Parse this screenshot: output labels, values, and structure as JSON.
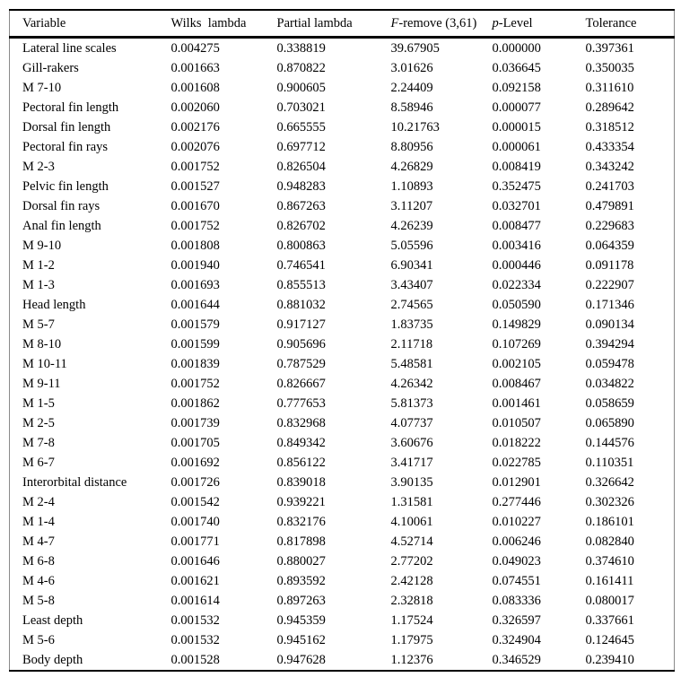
{
  "table": {
    "headers": [
      {
        "key": "variable",
        "segments": [
          {
            "text": "Variable",
            "italic": false
          }
        ]
      },
      {
        "key": "wilks-lambda",
        "segments": [
          {
            "text": "Wilks  lambda",
            "italic": false
          }
        ]
      },
      {
        "key": "partial-lambda",
        "segments": [
          {
            "text": "Partial lambda",
            "italic": false
          }
        ]
      },
      {
        "key": "f-remove",
        "segments": [
          {
            "text": "F",
            "italic": true
          },
          {
            "text": "-remove (3,61)",
            "italic": false
          }
        ]
      },
      {
        "key": "p-level",
        "segments": [
          {
            "text": "p",
            "italic": true
          },
          {
            "text": "-Level",
            "italic": false
          }
        ]
      },
      {
        "key": "tolerance",
        "segments": [
          {
            "text": "Tolerance",
            "italic": false
          }
        ]
      }
    ],
    "rows": [
      [
        "Lateral line scales",
        "0.004275",
        "0.338819",
        "39.67905",
        "0.000000",
        "0.397361"
      ],
      [
        "Gill-rakers",
        "0.001663",
        "0.870822",
        "3.01626",
        "0.036645",
        "0.350035"
      ],
      [
        "M 7-10",
        "0.001608",
        "0.900605",
        "2.24409",
        "0.092158",
        "0.311610"
      ],
      [
        "Pectoral fin length",
        "0.002060",
        "0.703021",
        "8.58946",
        "0.000077",
        "0.289642"
      ],
      [
        "Dorsal fin length",
        "0.002176",
        "0.665555",
        "10.21763",
        "0.000015",
        "0.318512"
      ],
      [
        "Pectoral fin rays",
        "0.002076",
        "0.697712",
        "8.80956",
        "0.000061",
        "0.433354"
      ],
      [
        "M 2-3",
        "0.001752",
        "0.826504",
        "4.26829",
        "0.008419",
        "0.343242"
      ],
      [
        "Pelvic fin length",
        "0.001527",
        "0.948283",
        "1.10893",
        "0.352475",
        "0.241703"
      ],
      [
        "Dorsal fin rays",
        "0.001670",
        "0.867263",
        "3.11207",
        "0.032701",
        "0.479891"
      ],
      [
        "Anal fin length",
        "0.001752",
        "0.826702",
        "4.26239",
        "0.008477",
        "0.229683"
      ],
      [
        "M 9-10",
        "0.001808",
        "0.800863",
        "5.05596",
        "0.003416",
        "0.064359"
      ],
      [
        "M 1-2",
        "0.001940",
        "0.746541",
        "6.90341",
        "0.000446",
        "0.091178"
      ],
      [
        "M 1-3",
        "0.001693",
        "0.855513",
        "3.43407",
        "0.022334",
        "0.222907"
      ],
      [
        "Head length",
        "0.001644",
        "0.881032",
        "2.74565",
        "0.050590",
        "0.171346"
      ],
      [
        "M 5-7",
        "0.001579",
        "0.917127",
        "1.83735",
        "0.149829",
        "0.090134"
      ],
      [
        "M 8-10",
        "0.001599",
        "0.905696",
        "2.11718",
        "0.107269",
        "0.394294"
      ],
      [
        "M 10-11",
        "0.001839",
        "0.787529",
        "5.48581",
        "0.002105",
        "0.059478"
      ],
      [
        "M 9-11",
        "0.001752",
        "0.826667",
        "4.26342",
        "0.008467",
        "0.034822"
      ],
      [
        "M 1-5",
        "0.001862",
        "0.777653",
        "5.81373",
        "0.001461",
        "0.058659"
      ],
      [
        "M 2-5",
        "0.001739",
        "0.832968",
        "4.07737",
        "0.010507",
        "0.065890"
      ],
      [
        "M 7-8",
        "0.001705",
        "0.849342",
        "3.60676",
        "0.018222",
        "0.144576"
      ],
      [
        "M 6-7",
        "0.001692",
        "0.856122",
        "3.41717",
        "0.022785",
        "0.110351"
      ],
      [
        "Interorbital distance",
        "0.001726",
        "0.839018",
        "3.90135",
        "0.012901",
        "0.326642"
      ],
      [
        "M 2-4",
        "0.001542",
        "0.939221",
        "1.31581",
        "0.277446",
        "0.302326"
      ],
      [
        "M 1-4",
        "0.001740",
        "0.832176",
        "4.10061",
        "0.010227",
        "0.186101"
      ],
      [
        "M 4-7",
        "0.001771",
        "0.817898",
        "4.52714",
        "0.006246",
        "0.082840"
      ],
      [
        "M 6-8",
        "0.001646",
        "0.880027",
        "2.77202",
        "0.049023",
        "0.374610"
      ],
      [
        "M 4-6",
        "0.001621",
        "0.893592",
        "2.42128",
        "0.074551",
        "0.161411"
      ],
      [
        "M 5-8",
        "0.001614",
        "0.897263",
        "2.32818",
        "0.083336",
        "0.080017"
      ],
      [
        "Least depth",
        "0.001532",
        "0.945359",
        "1.17524",
        "0.326597",
        "0.337661"
      ],
      [
        "M 5-6",
        "0.001532",
        "0.945162",
        "1.17975",
        "0.324904",
        "0.124645"
      ],
      [
        "Body depth",
        "0.001528",
        "0.947628",
        "1.12376",
        "0.346529",
        "0.239410"
      ]
    ]
  }
}
